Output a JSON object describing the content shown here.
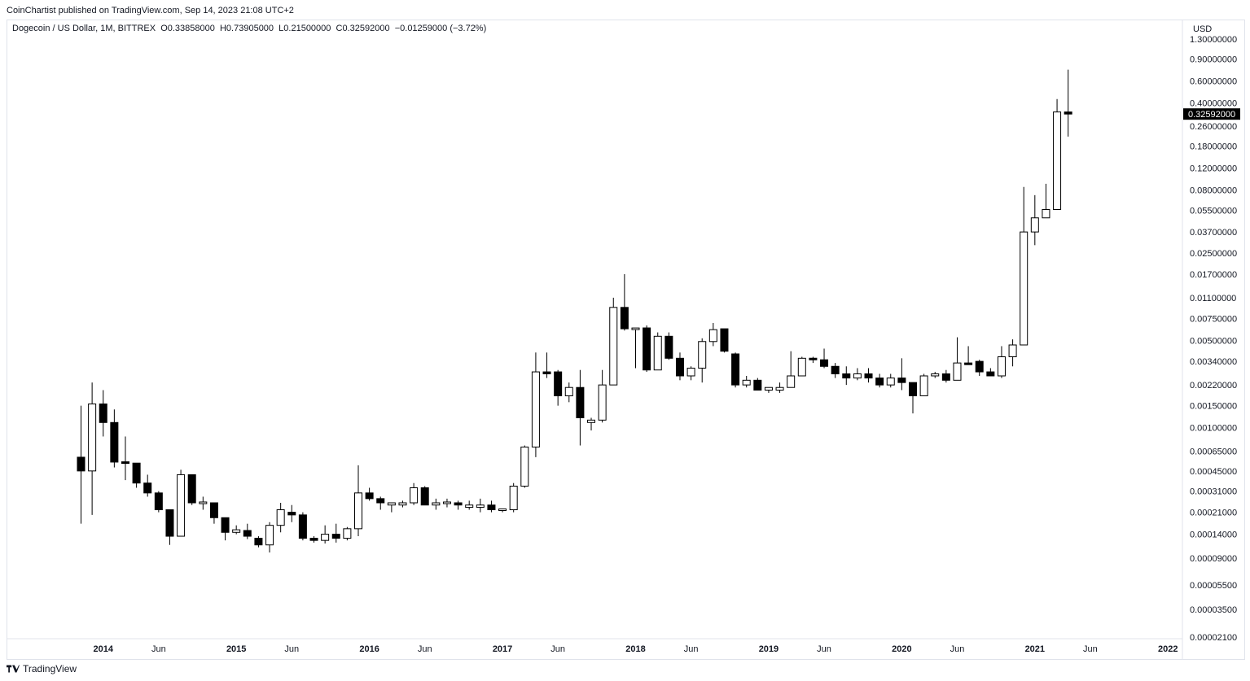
{
  "header": {
    "published": "CoinChartist published on TradingView.com, Sep 14, 2023 21:08 UTC+2"
  },
  "legend": {
    "symbol": "Dogecoin / US Dollar, 1M, BITTREX",
    "open": "O0.33858000",
    "high": "H0.73905000",
    "low": "L0.21500000",
    "close": "C0.32592000",
    "change": "−0.01259000 (−3.72%)"
  },
  "axis": {
    "currency": "USD",
    "last_price_label": "0.32592000"
  },
  "footer": {
    "brand": "TradingView"
  },
  "colors": {
    "up_fill": "#ffffff",
    "down_fill": "#000000",
    "wick": "#000000",
    "axis_text": "#131722",
    "last_price_bg": "#000000"
  },
  "chart_data": {
    "type": "candlestick",
    "scale": "log",
    "ylim": [
      2.1e-05,
      1.3
    ],
    "y_ticks": [
      "1.30000000",
      "0.90000000",
      "0.60000000",
      "0.40000000",
      "0.26000000",
      "0.18000000",
      "0.12000000",
      "0.08000000",
      "0.05500000",
      "0.03700000",
      "0.02500000",
      "0.01700000",
      "0.01100000",
      "0.00750000",
      "0.00500000",
      "0.00340000",
      "0.00220000",
      "0.00150000",
      "0.00100000",
      "0.00065000",
      "0.00045000",
      "0.00031000",
      "0.00021000",
      "0.00014000",
      "0.00009000",
      "0.00005500",
      "0.00003500",
      "0.00002100"
    ],
    "x_ticks": [
      {
        "label": "2014",
        "bold": true,
        "month_index": 2
      },
      {
        "label": "Jun",
        "bold": false,
        "month_index": 7
      },
      {
        "label": "2015",
        "bold": true,
        "month_index": 14
      },
      {
        "label": "Jun",
        "bold": false,
        "month_index": 19
      },
      {
        "label": "2016",
        "bold": true,
        "month_index": 26
      },
      {
        "label": "Jun",
        "bold": false,
        "month_index": 31
      },
      {
        "label": "2017",
        "bold": true,
        "month_index": 38
      },
      {
        "label": "Jun",
        "bold": false,
        "month_index": 43
      },
      {
        "label": "2018",
        "bold": true,
        "month_index": 50
      },
      {
        "label": "Jun",
        "bold": false,
        "month_index": 55
      },
      {
        "label": "2019",
        "bold": true,
        "month_index": 62
      },
      {
        "label": "Jun",
        "bold": false,
        "month_index": 67
      },
      {
        "label": "2020",
        "bold": true,
        "month_index": 74
      },
      {
        "label": "Jun",
        "bold": false,
        "month_index": 79
      },
      {
        "label": "2021",
        "bold": true,
        "month_index": 86
      },
      {
        "label": "Jun",
        "bold": false,
        "month_index": 91
      },
      {
        "label": "2022",
        "bold": true,
        "month_index": 98
      }
    ],
    "candles": [
      {
        "o": 0.00058,
        "h": 0.0015,
        "l": 0.00017,
        "c": 0.00045
      },
      {
        "o": 0.00045,
        "h": 0.0023,
        "l": 0.0002,
        "c": 0.00155
      },
      {
        "o": 0.00155,
        "h": 0.002,
        "l": 0.00085,
        "c": 0.0011
      },
      {
        "o": 0.0011,
        "h": 0.0014,
        "l": 0.00048,
        "c": 0.00053
      },
      {
        "o": 0.00053,
        "h": 0.00085,
        "l": 0.00038,
        "c": 0.00052
      },
      {
        "o": 0.00052,
        "h": 0.00052,
        "l": 0.00033,
        "c": 0.00036
      },
      {
        "o": 0.00036,
        "h": 0.00042,
        "l": 0.00028,
        "c": 0.0003
      },
      {
        "o": 0.0003,
        "h": 0.00031,
        "l": 0.00021,
        "c": 0.00022
      },
      {
        "o": 0.00022,
        "h": 0.00022,
        "l": 0.000115,
        "c": 0.000135
      },
      {
        "o": 0.000135,
        "h": 0.00046,
        "l": 0.000135,
        "c": 0.00042
      },
      {
        "o": 0.00042,
        "h": 0.00042,
        "l": 0.00024,
        "c": 0.00025
      },
      {
        "o": 0.00025,
        "h": 0.00028,
        "l": 0.00022,
        "c": 0.00025
      },
      {
        "o": 0.00025,
        "h": 0.00025,
        "l": 0.00017,
        "c": 0.00019
      },
      {
        "o": 0.00019,
        "h": 0.00019,
        "l": 0.000125,
        "c": 0.000145
      },
      {
        "o": 0.000145,
        "h": 0.000165,
        "l": 0.00014,
        "c": 0.000152
      },
      {
        "o": 0.00015,
        "h": 0.00017,
        "l": 0.000128,
        "c": 0.000135
      },
      {
        "o": 0.00013,
        "h": 0.000135,
        "l": 0.00011,
        "c": 0.000115
      },
      {
        "o": 0.000115,
        "h": 0.000175,
        "l": 0.0001,
        "c": 0.000165
      },
      {
        "o": 0.000165,
        "h": 0.00025,
        "l": 0.000145,
        "c": 0.00022
      },
      {
        "o": 0.00021,
        "h": 0.00024,
        "l": 0.000175,
        "c": 0.0002
      },
      {
        "o": 0.0002,
        "h": 0.00021,
        "l": 0.000125,
        "c": 0.00013
      },
      {
        "o": 0.00013,
        "h": 0.000135,
        "l": 0.00012,
        "c": 0.000125
      },
      {
        "o": 0.000125,
        "h": 0.000165,
        "l": 0.000118,
        "c": 0.00014
      },
      {
        "o": 0.00014,
        "h": 0.00017,
        "l": 0.00012,
        "c": 0.00013
      },
      {
        "o": 0.00013,
        "h": 0.00016,
        "l": 0.000125,
        "c": 0.000155
      },
      {
        "o": 0.000155,
        "h": 0.0005,
        "l": 0.000135,
        "c": 0.0003
      },
      {
        "o": 0.0003,
        "h": 0.00033,
        "l": 0.00026,
        "c": 0.00027
      },
      {
        "o": 0.00027,
        "h": 0.00028,
        "l": 0.00022,
        "c": 0.00025
      },
      {
        "o": 0.00024,
        "h": 0.00025,
        "l": 0.00021,
        "c": 0.00025
      },
      {
        "o": 0.00024,
        "h": 0.00026,
        "l": 0.00023,
        "c": 0.00025
      },
      {
        "o": 0.00025,
        "h": 0.00036,
        "l": 0.00024,
        "c": 0.00033
      },
      {
        "o": 0.00033,
        "h": 0.00034,
        "l": 0.00024,
        "c": 0.00024
      },
      {
        "o": 0.00024,
        "h": 0.00027,
        "l": 0.00022,
        "c": 0.00025
      },
      {
        "o": 0.00025,
        "h": 0.00027,
        "l": 0.00023,
        "c": 0.00025
      },
      {
        "o": 0.00025,
        "h": 0.00026,
        "l": 0.00022,
        "c": 0.00024
      },
      {
        "o": 0.00023,
        "h": 0.00026,
        "l": 0.00022,
        "c": 0.00024
      },
      {
        "o": 0.00023,
        "h": 0.00027,
        "l": 0.00021,
        "c": 0.00024
      },
      {
        "o": 0.00024,
        "h": 0.00026,
        "l": 0.00021,
        "c": 0.00022
      },
      {
        "o": 0.00022,
        "h": 0.00022,
        "l": 0.00021,
        "c": 0.00022
      },
      {
        "o": 0.00022,
        "h": 0.00036,
        "l": 0.00021,
        "c": 0.00034
      },
      {
        "o": 0.00034,
        "h": 0.00072,
        "l": 0.00033,
        "c": 0.0007
      },
      {
        "o": 0.0007,
        "h": 0.004,
        "l": 0.00058,
        "c": 0.0028
      },
      {
        "o": 0.0028,
        "h": 0.004,
        "l": 0.0025,
        "c": 0.0027
      },
      {
        "o": 0.0028,
        "h": 0.0029,
        "l": 0.0015,
        "c": 0.0018
      },
      {
        "o": 0.0018,
        "h": 0.0023,
        "l": 0.0016,
        "c": 0.0021
      },
      {
        "o": 0.0021,
        "h": 0.0029,
        "l": 0.00072,
        "c": 0.0012
      },
      {
        "o": 0.0011,
        "h": 0.0012,
        "l": 0.00095,
        "c": 0.00115
      },
      {
        "o": 0.00115,
        "h": 0.0029,
        "l": 0.0011,
        "c": 0.0022
      },
      {
        "o": 0.0022,
        "h": 0.011,
        "l": 0.0022,
        "c": 0.0092
      },
      {
        "o": 0.0092,
        "h": 0.017,
        "l": 0.006,
        "c": 0.0062
      },
      {
        "o": 0.0062,
        "h": 0.0062,
        "l": 0.003,
        "c": 0.0062
      },
      {
        "o": 0.0063,
        "h": 0.0066,
        "l": 0.0028,
        "c": 0.0029
      },
      {
        "o": 0.0029,
        "h": 0.0058,
        "l": 0.0029,
        "c": 0.0054
      },
      {
        "o": 0.0054,
        "h": 0.0058,
        "l": 0.0035,
        "c": 0.0036
      },
      {
        "o": 0.0036,
        "h": 0.004,
        "l": 0.0024,
        "c": 0.0026
      },
      {
        "o": 0.0026,
        "h": 0.0031,
        "l": 0.0024,
        "c": 0.003
      },
      {
        "o": 0.003,
        "h": 0.0052,
        "l": 0.0023,
        "c": 0.0049
      },
      {
        "o": 0.0049,
        "h": 0.0069,
        "l": 0.0045,
        "c": 0.0061
      },
      {
        "o": 0.0062,
        "h": 0.0062,
        "l": 0.004,
        "c": 0.0041
      },
      {
        "o": 0.0039,
        "h": 0.004,
        "l": 0.0021,
        "c": 0.0022
      },
      {
        "o": 0.0022,
        "h": 0.0026,
        "l": 0.0021,
        "c": 0.0024
      },
      {
        "o": 0.0024,
        "h": 0.0025,
        "l": 0.002,
        "c": 0.002
      },
      {
        "o": 0.002,
        "h": 0.0021,
        "l": 0.0019,
        "c": 0.0021
      },
      {
        "o": 0.002,
        "h": 0.0023,
        "l": 0.0019,
        "c": 0.0021
      },
      {
        "o": 0.0021,
        "h": 0.0041,
        "l": 0.0021,
        "c": 0.0026
      },
      {
        "o": 0.0026,
        "h": 0.0037,
        "l": 0.0026,
        "c": 0.0036
      },
      {
        "o": 0.0036,
        "h": 0.0037,
        "l": 0.0033,
        "c": 0.0035
      },
      {
        "o": 0.0035,
        "h": 0.0043,
        "l": 0.003,
        "c": 0.0031
      },
      {
        "o": 0.0031,
        "h": 0.0033,
        "l": 0.0025,
        "c": 0.0027
      },
      {
        "o": 0.0027,
        "h": 0.0031,
        "l": 0.0022,
        "c": 0.0025
      },
      {
        "o": 0.0025,
        "h": 0.003,
        "l": 0.0024,
        "c": 0.0027
      },
      {
        "o": 0.0027,
        "h": 0.003,
        "l": 0.0023,
        "c": 0.0025
      },
      {
        "o": 0.0025,
        "h": 0.0027,
        "l": 0.0021,
        "c": 0.0022
      },
      {
        "o": 0.0022,
        "h": 0.0027,
        "l": 0.0021,
        "c": 0.0025
      },
      {
        "o": 0.0025,
        "h": 0.0036,
        "l": 0.002,
        "c": 0.0023
      },
      {
        "o": 0.0023,
        "h": 0.0023,
        "l": 0.0013,
        "c": 0.0018
      },
      {
        "o": 0.0018,
        "h": 0.0027,
        "l": 0.0018,
        "c": 0.0026
      },
      {
        "o": 0.0026,
        "h": 0.0028,
        "l": 0.0025,
        "c": 0.0027
      },
      {
        "o": 0.0027,
        "h": 0.0029,
        "l": 0.0023,
        "c": 0.0024
      },
      {
        "o": 0.0024,
        "h": 0.0053,
        "l": 0.0024,
        "c": 0.0033
      },
      {
        "o": 0.0033,
        "h": 0.0045,
        "l": 0.0032,
        "c": 0.0032
      },
      {
        "o": 0.0034,
        "h": 0.0035,
        "l": 0.0026,
        "c": 0.0028
      },
      {
        "o": 0.0028,
        "h": 0.003,
        "l": 0.0026,
        "c": 0.0026
      },
      {
        "o": 0.0026,
        "h": 0.0045,
        "l": 0.0025,
        "c": 0.0037
      },
      {
        "o": 0.0037,
        "h": 0.0051,
        "l": 0.0031,
        "c": 0.0046
      },
      {
        "o": 0.0046,
        "h": 0.085,
        "l": 0.0046,
        "c": 0.037
      },
      {
        "o": 0.037,
        "h": 0.073,
        "l": 0.029,
        "c": 0.048
      },
      {
        "o": 0.048,
        "h": 0.09,
        "l": 0.048,
        "c": 0.056
      },
      {
        "o": 0.056,
        "h": 0.43,
        "l": 0.056,
        "c": 0.3386
      },
      {
        "o": 0.3386,
        "h": 0.7391,
        "l": 0.215,
        "c": 0.3259
      }
    ]
  }
}
